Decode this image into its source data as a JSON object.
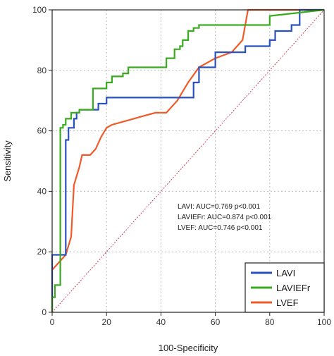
{
  "chart_data": {
    "type": "line",
    "xlabel": "100-Specificity",
    "ylabel": "Sensitivity",
    "xlim": [
      0,
      100
    ],
    "ylim": [
      0,
      100
    ],
    "xticks": [
      "0",
      "20",
      "40",
      "60",
      "80",
      "100"
    ],
    "yticks": [
      "0",
      "20",
      "40",
      "60",
      "80",
      "100"
    ],
    "grid": true,
    "legend": "bottom-right",
    "annotations": [
      "LAVI: AUC=0.769 p<0.001",
      "LAVIEFr: AUC=0.874 p<0.001",
      "LVEF: AUC=0.746 p<0.001"
    ],
    "reference_line": {
      "x": [
        0,
        100
      ],
      "y": [
        0,
        100
      ],
      "color": "#d04060"
    },
    "series": [
      {
        "name": "LAVI",
        "color": "#2a52be",
        "x": [
          0,
          0,
          5,
          5,
          6,
          6,
          8,
          8,
          9,
          9,
          10,
          10,
          17,
          17,
          20,
          20,
          52,
          52,
          54,
          54,
          60,
          60,
          71,
          71,
          80,
          80,
          82,
          82,
          88,
          88,
          91,
          91,
          100
        ],
        "y": [
          0,
          19,
          19,
          57,
          57,
          61,
          61,
          64,
          64,
          66,
          66,
          67,
          67,
          69,
          69,
          71,
          71,
          76,
          76,
          81,
          81,
          86,
          86,
          88,
          88,
          90,
          90,
          93,
          93,
          95,
          95,
          100,
          100
        ]
      },
      {
        "name": "LAVIEFr",
        "color": "#3aaa1e",
        "x": [
          0,
          0,
          1,
          1,
          3,
          3,
          4,
          4,
          5,
          5,
          7,
          7,
          10,
          10,
          15,
          15,
          20,
          20,
          22,
          22,
          26,
          26,
          28,
          28,
          42,
          42,
          45,
          45,
          47,
          47,
          48,
          48,
          50,
          50,
          52,
          52,
          54,
          54,
          80,
          80,
          100
        ],
        "y": [
          0,
          5,
          5,
          9,
          9,
          61,
          61,
          62,
          62,
          64,
          64,
          66,
          66,
          67,
          67,
          74,
          74,
          76,
          76,
          78,
          78,
          79,
          79,
          81,
          81,
          84,
          84,
          87,
          87,
          88,
          88,
          90,
          90,
          93,
          93,
          94,
          94,
          95,
          95,
          98,
          100
        ]
      },
      {
        "name": "LVEF",
        "color": "#f05a28",
        "x": [
          0,
          0,
          5,
          7,
          8,
          9,
          10,
          11,
          13,
          14,
          16,
          18,
          20,
          22,
          26,
          30,
          34,
          38,
          42,
          44,
          46,
          48,
          50,
          54,
          60,
          66,
          70,
          72,
          76,
          82,
          100
        ],
        "y": [
          0,
          14,
          19,
          25,
          42,
          45,
          48,
          52,
          52,
          52,
          54,
          58,
          61,
          62,
          63,
          64,
          65,
          66,
          66,
          68,
          70,
          73,
          76,
          81,
          84,
          86,
          90,
          100,
          100,
          100,
          100
        ]
      }
    ]
  }
}
